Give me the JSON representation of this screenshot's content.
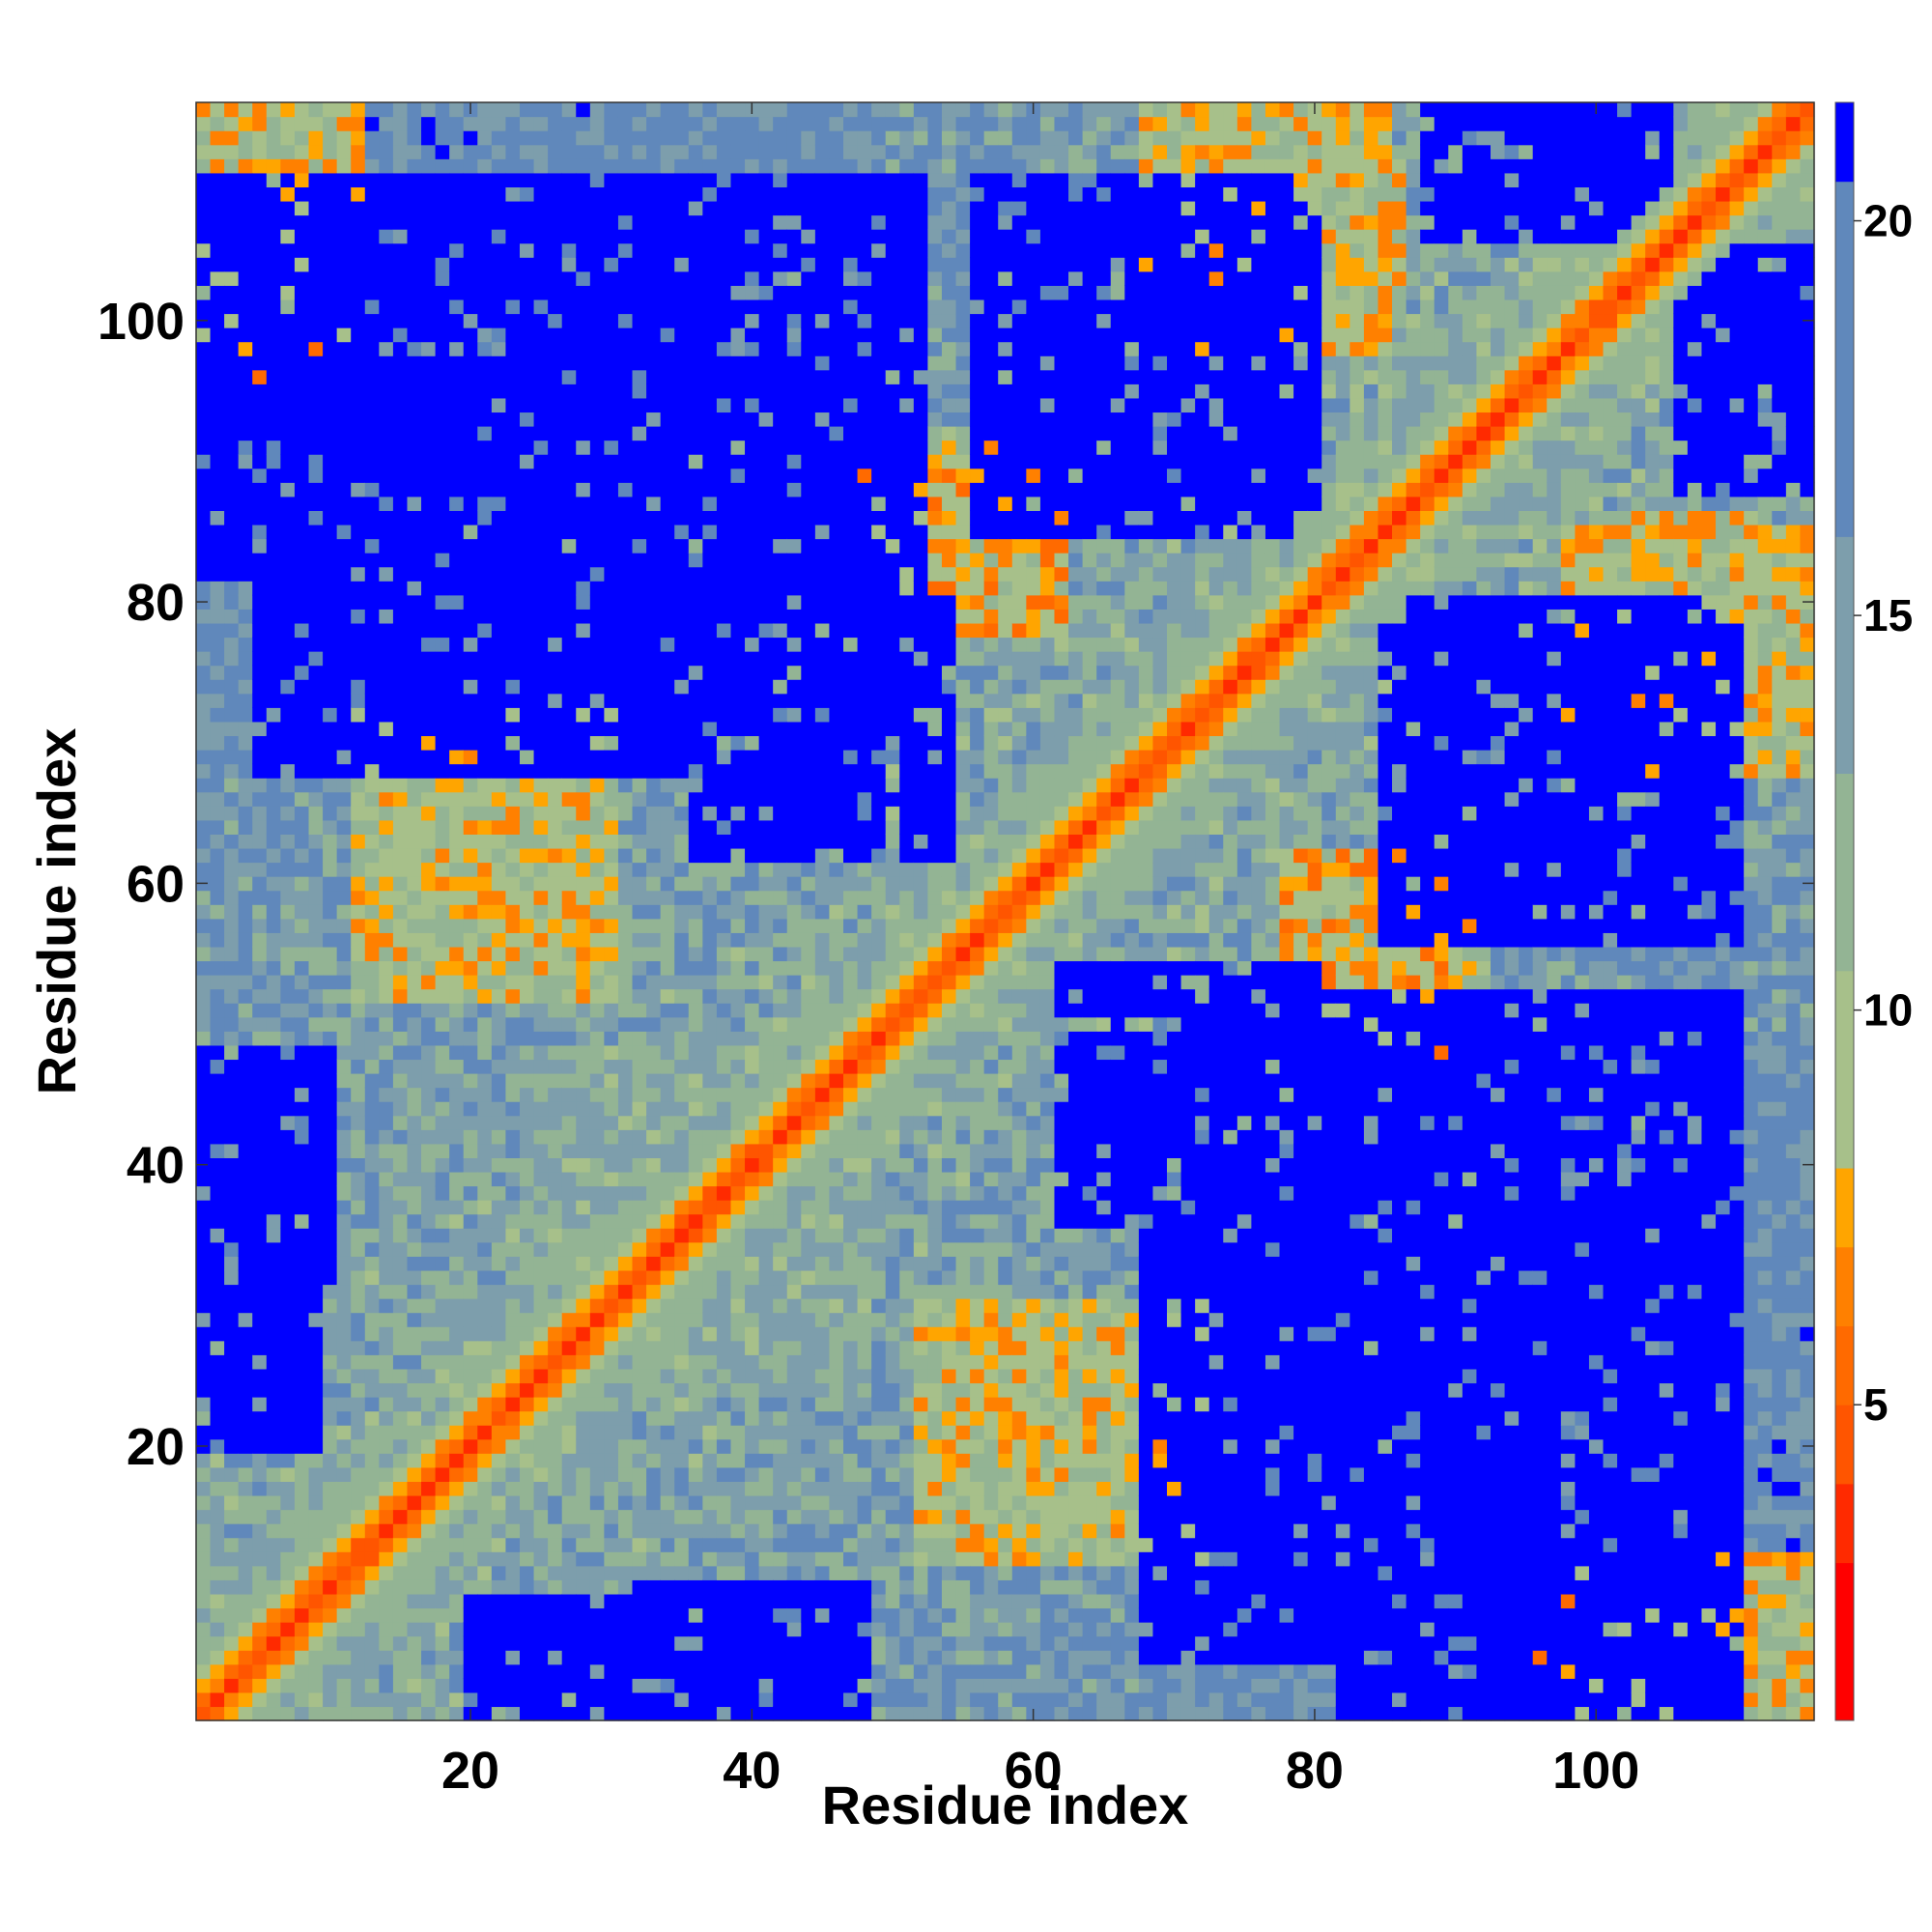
{
  "chart_data": {
    "type": "heatmap",
    "title": "",
    "xlabel": "Residue index",
    "ylabel": "Residue index",
    "n_residues": 115,
    "xlim": [
      1,
      115
    ],
    "ylim": [
      1,
      115
    ],
    "x_ticks": [
      20,
      40,
      60,
      80,
      100
    ],
    "y_ticks": [
      20,
      40,
      60,
      80,
      100
    ],
    "colorbar": {
      "range": [
        1,
        21.5
      ],
      "ticks": [
        5,
        10,
        15,
        20
      ],
      "bands": [
        {
          "from": 1,
          "to": 3,
          "color": "#ff0000"
        },
        {
          "from": 3,
          "to": 4,
          "color": "#ff2a00"
        },
        {
          "from": 4,
          "to": 5,
          "color": "#ff5500"
        },
        {
          "from": 5,
          "to": 6,
          "color": "#ff6a00"
        },
        {
          "from": 6,
          "to": 7,
          "color": "#ff8000"
        },
        {
          "from": 7,
          "to": 8,
          "color": "#ffa500"
        },
        {
          "from": 8,
          "to": 10.5,
          "color": "#a7c08a"
        },
        {
          "from": 10.5,
          "to": 13,
          "color": "#93b494"
        },
        {
          "from": 13,
          "to": 16,
          "color": "#7d9eac"
        },
        {
          "from": 16,
          "to": 20.5,
          "color": "#6088bb"
        },
        {
          "from": 20.5,
          "to": 21.5,
          "color": "#0000ff"
        }
      ]
    },
    "distance_cutoff": 20.5,
    "diagonal_band": {
      "offsets_from_diagonal": [
        0,
        1,
        2,
        3,
        4
      ],
      "approx_distances": [
        3.8,
        5.5,
        7.2,
        9.5,
        12
      ]
    },
    "contact_regions": [
      {
        "x": [
          1,
          12
        ],
        "y": [
          95,
          115
        ],
        "approx_distance": 8
      },
      {
        "x": [
          12,
          30
        ],
        "y": [
          55,
          72
        ],
        "approx_distance": 9
      },
      {
        "x": [
          48,
          62
        ],
        "y": [
          78,
          92
        ],
        "approx_distance": 8
      },
      {
        "x": [
          76,
          86
        ],
        "y": [
          100,
          112
        ],
        "approx_distance": 9
      },
      {
        "x": [
          78,
          92
        ],
        "y": [
          52,
          62
        ],
        "approx_distance": 8
      },
      {
        "x": [
          98,
          115
        ],
        "y": [
          68,
          85
        ],
        "approx_distance": 9
      },
      {
        "x": [
          52,
          70
        ],
        "y": [
          12,
          30
        ],
        "approx_distance": 9
      },
      {
        "x": [
          100,
          115
        ],
        "y": [
          1,
          12
        ],
        "approx_distance": 9
      },
      {
        "x": [
          36,
          48
        ],
        "y": [
          24,
          48
        ],
        "approx_distance": 13
      }
    ],
    "far_regions": [
      {
        "x": [
          8,
          52
        ],
        "y": [
          78,
          110
        ],
        "approx_distance": 21
      },
      {
        "x": [
          36,
          54
        ],
        "y": [
          62,
          80
        ],
        "approx_distance": 21
      },
      {
        "x": [
          56,
          78
        ],
        "y": [
          85,
          110
        ],
        "approx_distance": 21
      },
      {
        "x": [
          82,
          110
        ],
        "y": [
          1,
          48
        ],
        "approx_distance": 21
      },
      {
        "x": [
          68,
          82
        ],
        "y": [
          5,
          42
        ],
        "approx_distance": 21
      },
      {
        "x": [
          1,
          10
        ],
        "y": [
          32,
          48
        ],
        "approx_distance": 21
      },
      {
        "x": [
          20,
          40
        ],
        "y": [
          1,
          9
        ],
        "approx_distance": 21
      },
      {
        "x": [
          87,
          108
        ],
        "y": [
          58,
          80
        ],
        "approx_distance": 21
      },
      {
        "x": [
          88,
          104
        ],
        "y": [
          108,
          115
        ],
        "approx_distance": 21
      },
      {
        "x": [
          106,
          115
        ],
        "y": [
          88,
          105
        ],
        "approx_distance": 21
      }
    ],
    "grid": false,
    "legend": "colorbar-right"
  }
}
